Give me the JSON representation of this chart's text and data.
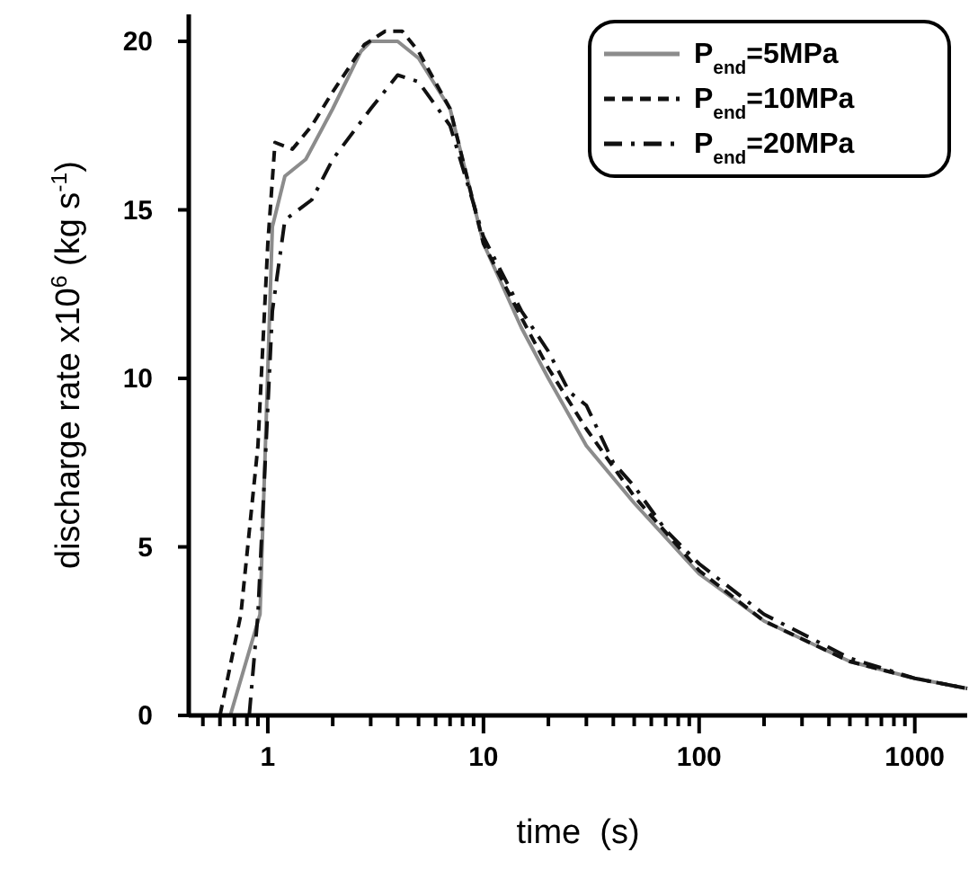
{
  "chart_data": {
    "type": "line",
    "xlabel": "time  (s)",
    "ylabel": "discharge rate x10$^{6}$ (kg s$^{-1}$)",
    "log": "x",
    "xlim": [
      0.43,
      1750
    ],
    "ylim": [
      0,
      20.8
    ],
    "xticks": [
      {
        "value": 0.5,
        "label": null
      },
      {
        "value": 0.6,
        "label": null
      },
      {
        "value": 0.7,
        "label": null
      },
      {
        "value": 0.8,
        "label": null
      },
      {
        "value": 0.9,
        "label": null
      },
      1,
      {
        "value": 2,
        "label": null
      },
      {
        "value": 3,
        "label": null
      },
      {
        "value": 4,
        "label": null
      },
      {
        "value": 5,
        "label": null
      },
      {
        "value": 6,
        "label": null
      },
      {
        "value": 7,
        "label": null
      },
      {
        "value": 8,
        "label": null
      },
      {
        "value": 9,
        "label": null
      },
      10,
      {
        "value": 20,
        "label": null
      },
      {
        "value": 30,
        "label": null
      },
      {
        "value": 40,
        "label": null
      },
      {
        "value": 50,
        "label": null
      },
      {
        "value": 60,
        "label": null
      },
      {
        "value": 70,
        "label": null
      },
      {
        "value": 80,
        "label": null
      },
      {
        "value": 90,
        "label": null
      },
      100,
      {
        "value": 200,
        "label": null
      },
      {
        "value": 300,
        "label": null
      },
      {
        "value": 400,
        "label": null
      },
      {
        "value": 500,
        "label": null
      },
      {
        "value": 600,
        "label": null
      },
      {
        "value": 700,
        "label": null
      },
      {
        "value": 800,
        "label": null
      },
      {
        "value": 900,
        "label": null
      },
      1000
    ],
    "yticks": [
      0,
      5,
      10,
      15,
      20
    ],
    "grid": false,
    "legend": "top right",
    "series": [
      {
        "name": "P$_{end}$=5MPa",
        "color": "#8c8c8c",
        "line_style": "solid",
        "x": [
          0.67,
          0.92,
          1.05,
          1.2,
          1.5,
          2,
          2.7,
          3,
          4,
          5,
          7,
          10,
          15,
          20,
          30,
          50,
          100,
          200,
          500,
          1000,
          1750
        ],
        "values": [
          0,
          3,
          14.5,
          16,
          16.5,
          18,
          19.7,
          20,
          20,
          19.5,
          18,
          14,
          11.5,
          10,
          8,
          6.3,
          4.2,
          2.8,
          1.6,
          1.1,
          0.8
        ]
      },
      {
        "name": "P$_{end}$=10MPa",
        "color": "#111111",
        "line_style": "dashed",
        "x": [
          0.6,
          0.75,
          0.9,
          1,
          1.08,
          1.3,
          1.6,
          2,
          2.8,
          3.5,
          4.2,
          5,
          7,
          10,
          15,
          20,
          30,
          50,
          100,
          200,
          500,
          1000,
          1750
        ],
        "values": [
          0,
          3,
          8,
          14,
          17,
          16.8,
          17.5,
          18.5,
          19.9,
          20.3,
          20.3,
          19.7,
          18,
          14,
          11.8,
          10.3,
          8.5,
          6.5,
          4.3,
          2.8,
          1.6,
          1.1,
          0.8
        ]
      },
      {
        "name": "P$_{end}$=20MPa",
        "color": "#111111",
        "line_style": "dashdot",
        "x": [
          0.82,
          0.9,
          1.05,
          1.2,
          1.6,
          2,
          3,
          4,
          5,
          7,
          10,
          15,
          20,
          25,
          30,
          40,
          50,
          70,
          100,
          200,
          500,
          1000,
          1750
        ],
        "values": [
          0,
          3,
          12,
          14.7,
          15.3,
          16.5,
          18,
          19,
          18.8,
          17.5,
          14.2,
          12,
          10.8,
          9.6,
          9.2,
          7.5,
          6.8,
          5.5,
          4.5,
          3,
          1.7,
          1.1,
          0.8
        ]
      }
    ]
  }
}
